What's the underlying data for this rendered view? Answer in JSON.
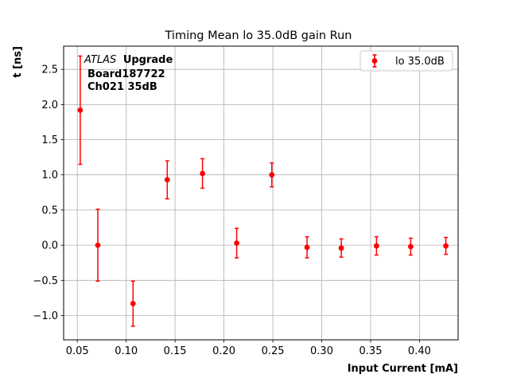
{
  "chart_data": {
    "type": "scatter",
    "title": "Timing Mean lo 35.0dB gain Run",
    "xlabel": "Input Current [mA]",
    "ylabel": "t [ns]",
    "xlim": [
      0.036,
      0.4395
    ],
    "ylim": [
      -1.345,
      2.83
    ],
    "grid": true,
    "legend_position": "top-right",
    "x_ticks": [
      0.05,
      0.1,
      0.15,
      0.2,
      0.25,
      0.3,
      0.35,
      0.4
    ],
    "x_tick_labels": [
      "0.05",
      "0.10",
      "0.15",
      "0.20",
      "0.25",
      "0.30",
      "0.35",
      "0.40"
    ],
    "y_ticks": [
      -1.0,
      -0.5,
      0.0,
      0.5,
      1.0,
      1.5,
      2.0,
      2.5
    ],
    "y_tick_labels": [
      "−1.0",
      "−0.5",
      "0.0",
      "0.5",
      "1.0",
      "1.5",
      "2.0",
      "2.5"
    ],
    "series": [
      {
        "name": "lo 35.0dB",
        "color": "#ff0000",
        "marker": "circle",
        "x": [
          0.053,
          0.071,
          0.107,
          0.142,
          0.178,
          0.213,
          0.249,
          0.285,
          0.32,
          0.356,
          0.391,
          0.427
        ],
        "y": [
          1.92,
          0.0,
          -0.83,
          0.93,
          1.02,
          0.03,
          1.0,
          -0.03,
          -0.04,
          -0.01,
          -0.02,
          -0.01
        ],
        "yerr": [
          0.77,
          0.51,
          0.32,
          0.27,
          0.21,
          0.21,
          0.17,
          0.15,
          0.13,
          0.13,
          0.12,
          0.12
        ]
      }
    ],
    "annotation": {
      "atlas": "ATLAS",
      "upgrade": "Upgrade",
      "line2": "Board187722",
      "line3": "Ch021 35dB"
    }
  }
}
